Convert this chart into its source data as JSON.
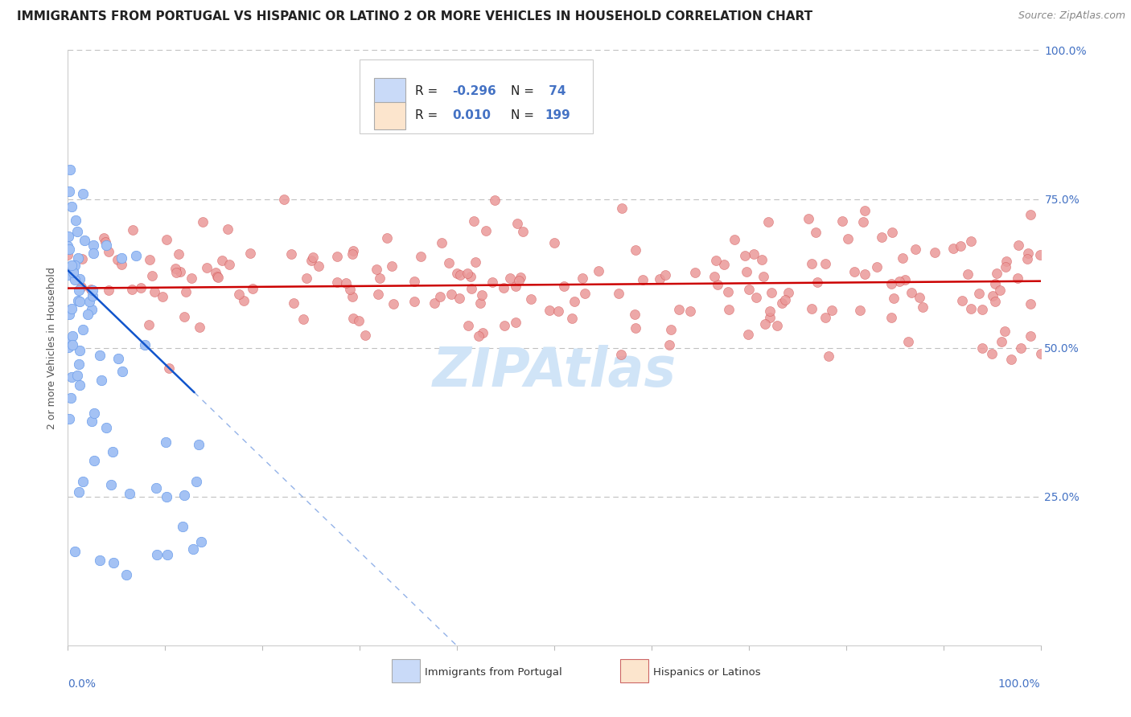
{
  "title": "IMMIGRANTS FROM PORTUGAL VS HISPANIC OR LATINO 2 OR MORE VEHICLES IN HOUSEHOLD CORRELATION CHART",
  "source": "Source: ZipAtlas.com",
  "ylabel": "2 or more Vehicles in Household",
  "blue_color": "#a4c2f4",
  "blue_edge_color": "#6d9eeb",
  "pink_color": "#ea9999",
  "pink_edge_color": "#cc4444",
  "blue_line_color": "#1155cc",
  "pink_line_color": "#cc0000",
  "blue_legend_fill": "#c9daf8",
  "pink_legend_fill": "#fce5cd",
  "right_label_color": "#4472c4",
  "watermark_color": "#d0e4f7",
  "title_fontsize": 11,
  "source_fontsize": 9,
  "label_fontsize": 9,
  "tick_fontsize": 9,
  "legend_fontsize": 11
}
